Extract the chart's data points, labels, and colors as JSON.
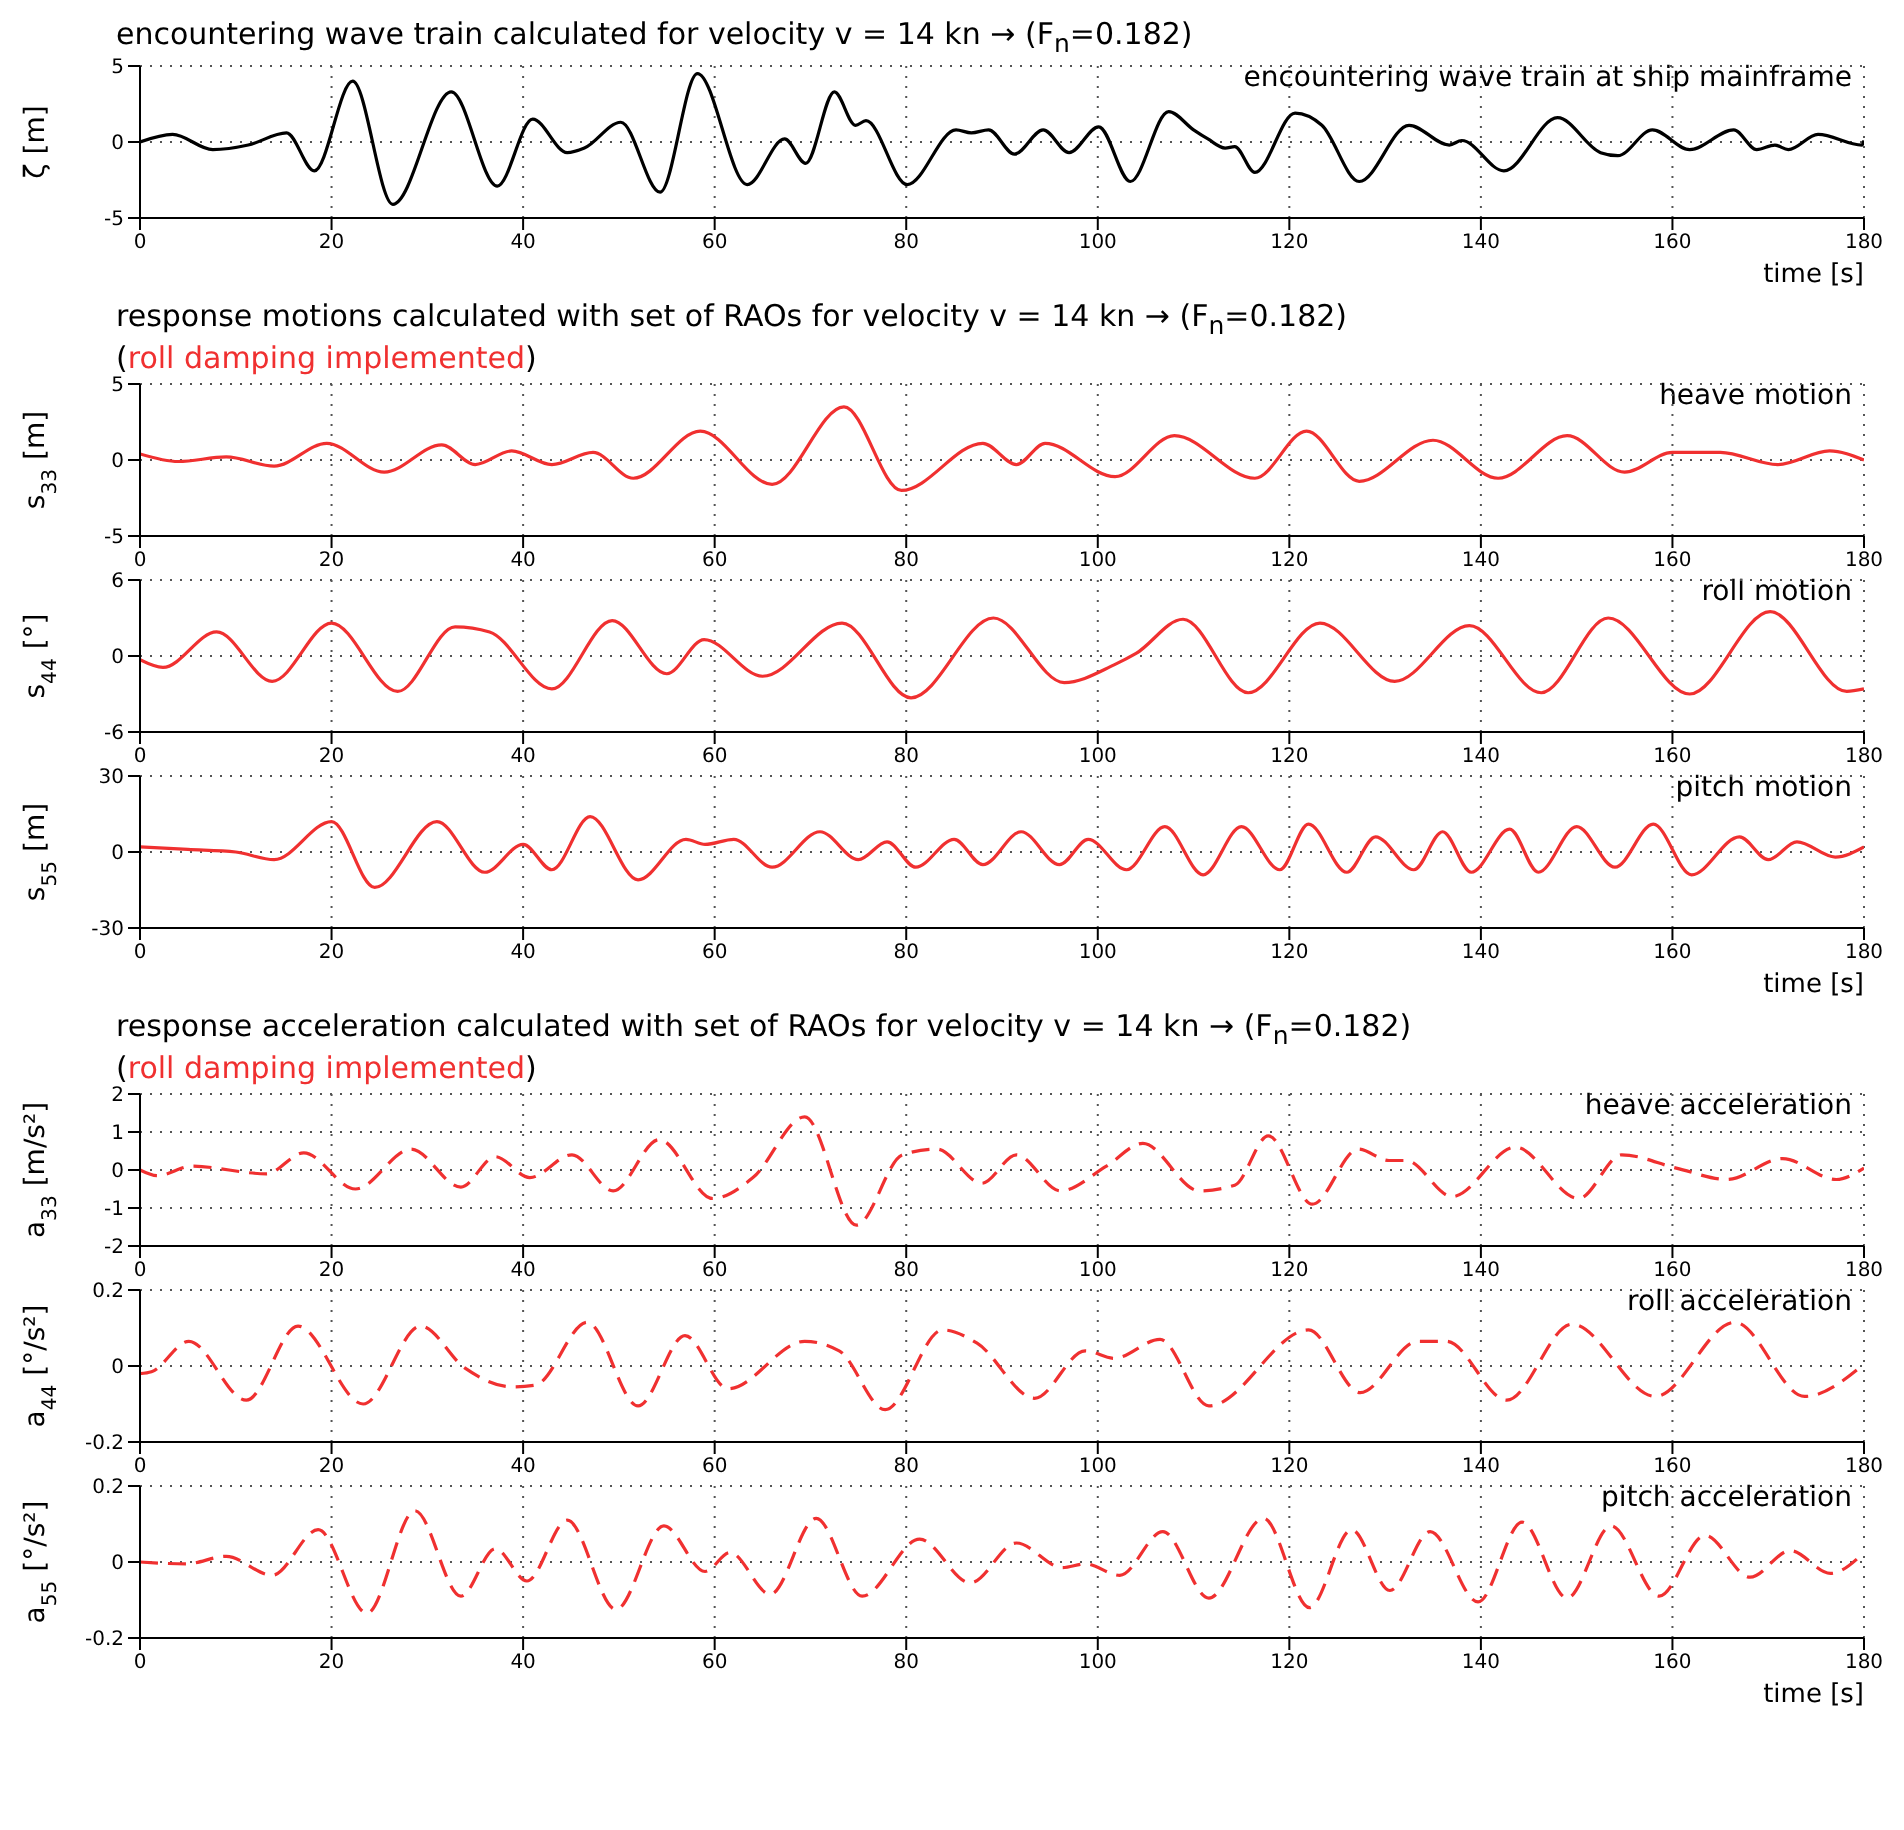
{
  "chart_data": [
    {
      "type": "line",
      "title": "encountering wave train calculated for velocity v = 14 kn → (F$_{n}$=0.182)",
      "xlabel": "time [s]",
      "ylabel": "ζ [m]",
      "xlim": [
        0,
        180
      ],
      "xticks": [
        0,
        20,
        40,
        60,
        80,
        100,
        120,
        140,
        160,
        180
      ],
      "ylim": [
        -5,
        5
      ],
      "yticks": [
        -5,
        0,
        5
      ],
      "grid": true,
      "line_style": "solid",
      "series": [
        {
          "name": "encountering wave train at ship mainframe",
          "color": "#000000",
          "x": [
            0,
            3.4,
            7.6,
            11.3,
            15.3,
            18.2,
            22.2,
            26.4,
            32.5,
            37.3,
            41,
            44.6,
            46.4,
            50.2,
            54.3,
            58.2,
            63.4,
            67.3,
            69.5,
            72.5,
            74.7,
            75.8,
            80.1,
            85.2,
            86.8,
            88.6,
            91.3,
            94.3,
            97,
            100.1,
            103.4,
            107.4,
            110,
            111.5,
            113.3,
            114.3,
            116.4,
            120.6,
            123.4,
            127.3,
            132.5,
            136.7,
            138,
            142.4,
            148,
            152.5,
            154.3,
            157.9,
            161.8,
            166.4,
            168.8,
            170.7,
            172.1,
            175.2,
            179.8,
            180
          ],
          "values": [
            0,
            0.5,
            -0.5,
            -0.2,
            0.6,
            -1.9,
            4,
            -4.1,
            3.3,
            -2.9,
            1.5,
            -0.7,
            -0.4,
            1.3,
            -3.3,
            4.5,
            -2.8,
            0.2,
            -1.4,
            3.3,
            1.1,
            1.4,
            -2.8,
            0.8,
            0.6,
            0.8,
            -0.8,
            0.8,
            -0.7,
            1,
            -2.6,
            2,
            0.8,
            0.2,
            -0.4,
            -0.3,
            -2,
            1.9,
            1.1,
            -2.6,
            1.1,
            -0.2,
            0.1,
            -1.9,
            1.6,
            -0.7,
            -0.9,
            0.8,
            -0.5,
            0.8,
            -0.5,
            -0.2,
            -0.5,
            0.5,
            -0.2,
            0.1
          ]
        }
      ]
    },
    {
      "type": "line",
      "title": "response motions calculated with set of RAOs for velocity v = 14 kn → (F$_{n}$=0.182)",
      "subtitle": "(roll damping implemented)",
      "ylabel": "s$_{33}$ [m]",
      "xlim": [
        0,
        180
      ],
      "xticks": [
        0,
        20,
        40,
        60,
        80,
        100,
        120,
        140,
        160,
        180
      ],
      "ylim": [
        -5,
        5
      ],
      "yticks": [
        -5,
        0,
        5
      ],
      "grid": true,
      "line_style": "solid",
      "series": [
        {
          "name": "heave motion",
          "color": "#f03030",
          "x": [
            0,
            4,
            9,
            14,
            19.5,
            25.5,
            31.5,
            35,
            38.8,
            43,
            47.3,
            51.5,
            58.5,
            66,
            73.5,
            79.5,
            88,
            91.5,
            94.5,
            101.8,
            108,
            116.4,
            121.8,
            127.3,
            135,
            141.8,
            149,
            155,
            160,
            165,
            171,
            176.4,
            180
          ],
          "values": [
            0.4,
            -0.1,
            0.2,
            -0.4,
            1.1,
            -0.8,
            1,
            -0.3,
            0.6,
            -0.3,
            0.5,
            -1.2,
            1.9,
            -1.6,
            3.5,
            -2,
            1.1,
            -0.3,
            1.1,
            -1.1,
            1.6,
            -1.2,
            1.9,
            -1.4,
            1.3,
            -1.2,
            1.6,
            -0.8,
            0.5,
            0.5,
            -0.3,
            0.6,
            0
          ]
        }
      ]
    },
    {
      "type": "line",
      "ylabel": "s$_{44}$ [°]",
      "xlim": [
        0,
        180
      ],
      "xticks": [
        0,
        20,
        40,
        60,
        80,
        100,
        120,
        140,
        160,
        180
      ],
      "ylim": [
        -6,
        6
      ],
      "yticks": [
        -6,
        0,
        6
      ],
      "grid": true,
      "line_style": "solid",
      "series": [
        {
          "name": "roll motion",
          "color": "#f03030",
          "x": [
            0,
            2.4,
            8,
            13.8,
            20,
            26.9,
            32.9,
            36.5,
            43,
            49.3,
            55,
            58.9,
            65,
            73.3,
            80.5,
            89.1,
            96.5,
            101.7,
            104,
            108.9,
            115.7,
            123.2,
            131,
            138.8,
            146.3,
            153.3,
            161.8,
            170.2,
            178.2,
            180
          ],
          "values": [
            -0.3,
            -0.9,
            1.9,
            -2,
            2.6,
            -2.8,
            2.3,
            1.9,
            -2.6,
            2.8,
            -1.4,
            1.3,
            -1.6,
            2.6,
            -3.3,
            3,
            -2.1,
            -0.7,
            0.2,
            2.9,
            -2.9,
            2.6,
            -2,
            2.4,
            -2.9,
            3,
            -3,
            3.5,
            -2.8,
            -2.6
          ]
        }
      ]
    },
    {
      "type": "line",
      "xlabel": "time [s]",
      "ylabel": "s$_{55}$ [m]",
      "xlim": [
        0,
        180
      ],
      "xticks": [
        0,
        20,
        40,
        60,
        80,
        100,
        120,
        140,
        160,
        180
      ],
      "ylim": [
        -30,
        30
      ],
      "yticks": [
        -30,
        0,
        30
      ],
      "grid": true,
      "line_style": "solid",
      "series": [
        {
          "name": "pitch motion",
          "color": "#f03030",
          "x": [
            0,
            5,
            10,
            14,
            20,
            24.5,
            31,
            36,
            40,
            43,
            47,
            52,
            57,
            59,
            62,
            66,
            71,
            75,
            78,
            81,
            85,
            88,
            92,
            96,
            99,
            103,
            107,
            111,
            115,
            119,
            122,
            126,
            129,
            133,
            136,
            139,
            143,
            146,
            150,
            154,
            158,
            162,
            167,
            170,
            173,
            177,
            180
          ],
          "values": [
            2,
            1,
            0,
            -3,
            12,
            -14,
            12,
            -8,
            3,
            -7,
            14,
            -11,
            5,
            3,
            5,
            -6,
            8,
            -3,
            4,
            -6,
            5,
            -5,
            8,
            -5,
            5,
            -7,
            10,
            -9,
            10,
            -7,
            11,
            -8,
            6,
            -7,
            8,
            -8,
            9,
            -8,
            10,
            -6,
            11,
            -9,
            6,
            -3,
            4,
            -2,
            2
          ]
        }
      ]
    },
    {
      "type": "line",
      "title": "response acceleration calculated with set of RAOs for velocity v = 14 kn → (F$_{n}$=0.182)",
      "subtitle": "(roll damping implemented)",
      "ylabel": "a$_{33}$ [m/s²]",
      "xlim": [
        0,
        180
      ],
      "xticks": [
        0,
        20,
        40,
        60,
        80,
        100,
        120,
        140,
        160,
        180
      ],
      "ylim": [
        -2,
        2
      ],
      "yticks": [
        -2,
        -1,
        0,
        1,
        2
      ],
      "grid": true,
      "line_style": "dashed",
      "series": [
        {
          "name": "heave acceleration",
          "color": "#f03030",
          "x": [
            0,
            1.8,
            5.4,
            13.2,
            17.1,
            22.5,
            28.3,
            33.5,
            37.1,
            40.7,
            45.1,
            49.4,
            54.2,
            59.8,
            64,
            69.4,
            74.8,
            79.6,
            83.2,
            87.9,
            91.5,
            96.1,
            100.9,
            104.7,
            110.6,
            114.3,
            117.8,
            122.4,
            127.2,
            130.4,
            132.2,
            137,
            143.6,
            150.2,
            154.7,
            160.4,
            165.7,
            171.5,
            177.1,
            180
          ],
          "values": [
            0,
            -0.15,
            0.1,
            -0.1,
            0.45,
            -0.5,
            0.55,
            -0.45,
            0.35,
            -0.2,
            0.4,
            -0.55,
            0.8,
            -0.75,
            -0.2,
            1.4,
            -1.45,
            0.4,
            0.55,
            -0.35,
            0.4,
            -0.55,
            0.1,
            0.7,
            -0.55,
            -0.4,
            0.9,
            -0.9,
            0.55,
            0.25,
            0.25,
            -0.7,
            0.6,
            -0.75,
            0.4,
            0.05,
            -0.25,
            0.3,
            -0.25,
            0.05
          ]
        }
      ]
    },
    {
      "type": "line",
      "ylabel": "a$_{44}$ [°/s²]",
      "xlim": [
        0,
        180
      ],
      "xticks": [
        0,
        20,
        40,
        60,
        80,
        100,
        120,
        140,
        160,
        180
      ],
      "ylim": [
        -0.2,
        0.2
      ],
      "yticks": [
        -0.2,
        0,
        0.2
      ],
      "grid": true,
      "line_style": "dashed",
      "series": [
        {
          "name": "roll acceleration",
          "color": "#f03030",
          "x": [
            0,
            1.2,
            5.1,
            11.1,
            16.5,
            23.3,
            29.3,
            33.9,
            38.9,
            41.3,
            46.7,
            52,
            56.9,
            61.4,
            69.4,
            73,
            77.8,
            83.8,
            87.4,
            93.4,
            98.7,
            101.7,
            106.5,
            111.6,
            122,
            127.4,
            133.4,
            136.4,
            142.7,
            149.5,
            158.2,
            166.5,
            173.8,
            180
          ],
          "values": [
            -0.02,
            -0.015,
            0.065,
            -0.09,
            0.105,
            -0.1,
            0.105,
            -0.005,
            -0.055,
            -0.05,
            0.115,
            -0.105,
            0.08,
            -0.06,
            0.065,
            0.04,
            -0.115,
            0.095,
            0.06,
            -0.085,
            0.04,
            0.02,
            0.07,
            -0.105,
            0.095,
            -0.07,
            0.065,
            0.065,
            -0.09,
            0.11,
            -0.08,
            0.115,
            -0.08,
            0.005
          ]
        }
      ]
    },
    {
      "type": "line",
      "xlabel": "time [s]",
      "ylabel": "a$_{55}$ [°/s²]",
      "xlim": [
        0,
        180
      ],
      "xticks": [
        0,
        20,
        40,
        60,
        80,
        100,
        120,
        140,
        160,
        180
      ],
      "ylim": [
        -0.2,
        0.2
      ],
      "yticks": [
        -0.2,
        0,
        0.2
      ],
      "grid": true,
      "line_style": "dashed",
      "series": [
        {
          "name": "pitch acceleration",
          "color": "#f03030",
          "x": [
            0,
            4.8,
            9,
            13.8,
            18.6,
            23.7,
            28.7,
            33.5,
            37.1,
            40.4,
            44.6,
            49.7,
            54.7,
            59,
            61.6,
            65.8,
            70.6,
            75.4,
            81.4,
            86.7,
            91.5,
            96.3,
            98.7,
            102.3,
            106.8,
            111.6,
            117.3,
            122.1,
            126.5,
            130.5,
            134.7,
            139.7,
            144.3,
            149,
            153.6,
            158.6,
            163.4,
            168.1,
            172.3,
            176.5,
            180
          ],
          "values": [
            0,
            -0.005,
            0.015,
            -0.035,
            0.085,
            -0.135,
            0.135,
            -0.09,
            0.035,
            -0.05,
            0.11,
            -0.125,
            0.095,
            -0.025,
            0.025,
            -0.085,
            0.115,
            -0.09,
            0.06,
            -0.055,
            0.05,
            -0.015,
            -0.005,
            -0.035,
            0.08,
            -0.095,
            0.115,
            -0.12,
            0.085,
            -0.075,
            0.08,
            -0.105,
            0.105,
            -0.095,
            0.095,
            -0.09,
            0.07,
            -0.04,
            0.03,
            -0.03,
            0.025
          ]
        }
      ]
    }
  ]
}
